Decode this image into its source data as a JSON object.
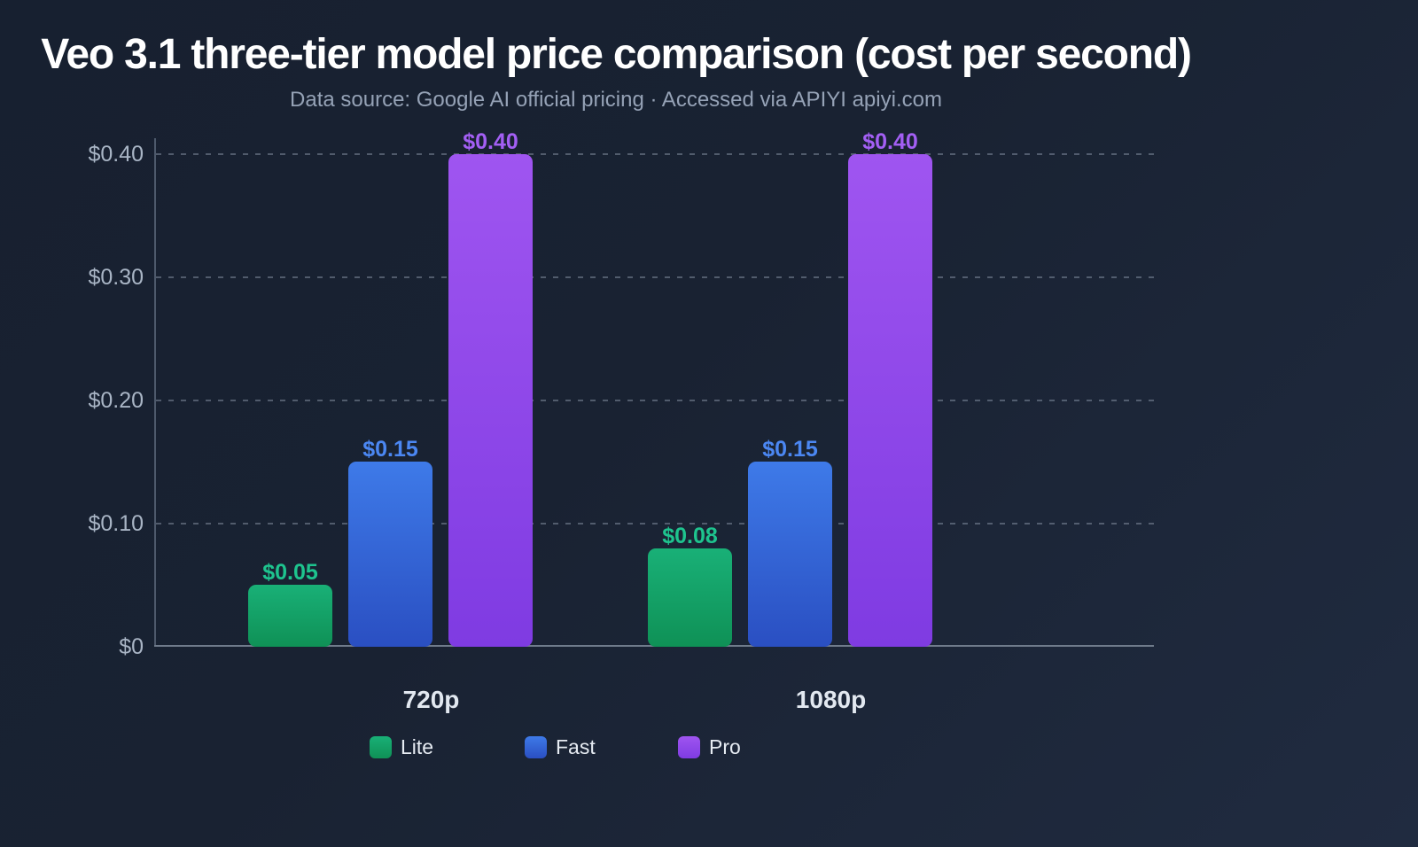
{
  "title": "Veo 3.1 three-tier model price comparison (cost per second)",
  "subtitle": "Data source: Google AI official pricing · Accessed via APIYI apiyi.com",
  "colors": {
    "background_start": "#172030",
    "background_end": "#202b40",
    "title_text": "#ffffff",
    "subtitle_text": "#95a2b6",
    "axis_label_text": "#a9b5c5",
    "category_label_text": "#e2e8f0",
    "legend_text": "#e6ebf2",
    "gridline": "rgba(150,162,180,0.45)",
    "y_axis_line": "#4e5a6c",
    "x_axis_line": "#6f7b8b"
  },
  "chart_data": {
    "type": "bar",
    "title": "Veo 3.1 three-tier model price comparison (cost per second)",
    "subtitle": "Data source: Google AI official pricing · Accessed via APIYI apiyi.com",
    "categories": [
      "720p",
      "1080p"
    ],
    "series": [
      {
        "name": "Lite",
        "values": [
          0.05,
          0.08
        ],
        "color_top": "#19b077",
        "color_bottom": "#0f9156",
        "label_color": "#1ec48e"
      },
      {
        "name": "Fast",
        "values": [
          0.15,
          0.15
        ],
        "color_top": "#3e7ae8",
        "color_bottom": "#2a4fc2",
        "label_color": "#4b87f2"
      },
      {
        "name": "Pro",
        "values": [
          0.4,
          0.4
        ],
        "color_top": "#9f55f0",
        "color_bottom": "#7f3be2",
        "label_color": "#a35ff4"
      }
    ],
    "value_prefix": "$",
    "value_decimals": 2,
    "y_ticks": [
      0,
      0.1,
      0.2,
      0.3,
      0.4
    ],
    "y_tick_labels": [
      "$0",
      "$0.10",
      "$0.20",
      "$0.30",
      "$0.40"
    ],
    "ylim": [
      0,
      0.4
    ],
    "xlabel": "",
    "ylabel": "",
    "grid": "dashed-horizontal",
    "legend_position": "bottom",
    "legend_entries": [
      "Lite",
      "Fast",
      "Pro"
    ]
  }
}
